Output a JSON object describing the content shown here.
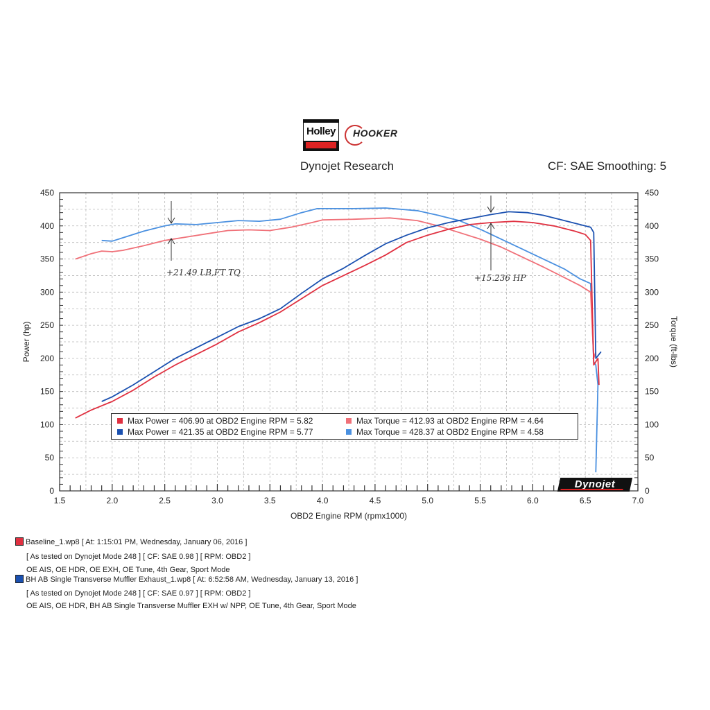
{
  "header": {
    "holley_logo_text": "Holley",
    "hooker_logo_text": "HOOKER",
    "title": "Dynojet Research",
    "cf_text": "CF: SAE Smoothing: 5"
  },
  "colors": {
    "baseline_power": "#e03040",
    "baseline_torque": "#f07078",
    "bh_power": "#1a50b0",
    "bh_torque": "#4a90e0"
  },
  "chart_data": {
    "type": "line",
    "xlabel": "OBD2 Engine RPM (rpmx1000)",
    "ylabel_left": "Power (hp)",
    "ylabel_right": "Torque (ft-lbs)",
    "xlim": [
      1.5,
      7.0
    ],
    "ylim": [
      0,
      450
    ],
    "x_ticks": [
      "1.5",
      "2.0",
      "2.5",
      "3.0",
      "3.5",
      "4.0",
      "4.5",
      "5.0",
      "5.5",
      "6.0",
      "6.5",
      "7.0"
    ],
    "y_ticks": [
      "0",
      "50",
      "100",
      "150",
      "200",
      "250",
      "300",
      "350",
      "400",
      "450"
    ],
    "grid": true,
    "series": [
      {
        "key": "bh_torque",
        "color": "#4a90e0",
        "points": [
          [
            1.9,
            378
          ],
          [
            2.0,
            377
          ],
          [
            2.1,
            382
          ],
          [
            2.3,
            392
          ],
          [
            2.5,
            400
          ],
          [
            2.6,
            403
          ],
          [
            2.8,
            402
          ],
          [
            3.0,
            405
          ],
          [
            3.2,
            408
          ],
          [
            3.4,
            407
          ],
          [
            3.6,
            410
          ],
          [
            3.8,
            420
          ],
          [
            3.95,
            426
          ],
          [
            4.1,
            426
          ],
          [
            4.3,
            426
          ],
          [
            4.6,
            427
          ],
          [
            4.9,
            423
          ],
          [
            5.1,
            416
          ],
          [
            5.3,
            408
          ],
          [
            5.5,
            395
          ],
          [
            5.7,
            380
          ],
          [
            5.9,
            365
          ],
          [
            6.1,
            350
          ],
          [
            6.3,
            335
          ],
          [
            6.45,
            320
          ],
          [
            6.55,
            313
          ],
          [
            6.58,
            195
          ],
          [
            6.6,
            190
          ],
          [
            6.62,
            160
          ],
          [
            6.6,
            28
          ]
        ]
      },
      {
        "key": "baseline_torque",
        "color": "#f07078",
        "points": [
          [
            1.65,
            350
          ],
          [
            1.8,
            358
          ],
          [
            1.9,
            362
          ],
          [
            2.0,
            361
          ],
          [
            2.1,
            363
          ],
          [
            2.3,
            370
          ],
          [
            2.5,
            378
          ],
          [
            2.7,
            383
          ],
          [
            2.9,
            388
          ],
          [
            3.1,
            393
          ],
          [
            3.3,
            394
          ],
          [
            3.5,
            393
          ],
          [
            3.7,
            398
          ],
          [
            3.9,
            405
          ],
          [
            4.0,
            409
          ],
          [
            4.3,
            410
          ],
          [
            4.64,
            412
          ],
          [
            4.9,
            408
          ],
          [
            5.1,
            400
          ],
          [
            5.3,
            390
          ],
          [
            5.5,
            380
          ],
          [
            5.7,
            368
          ],
          [
            5.9,
            353
          ],
          [
            6.1,
            338
          ],
          [
            6.3,
            322
          ],
          [
            6.45,
            310
          ],
          [
            6.55,
            300
          ],
          [
            6.58,
            200
          ],
          [
            6.6,
            210
          ]
        ]
      },
      {
        "key": "baseline_power",
        "color": "#e03040",
        "points": [
          [
            1.65,
            110
          ],
          [
            1.8,
            122
          ],
          [
            2.0,
            135
          ],
          [
            2.2,
            152
          ],
          [
            2.4,
            172
          ],
          [
            2.6,
            190
          ],
          [
            2.8,
            206
          ],
          [
            3.0,
            222
          ],
          [
            3.2,
            240
          ],
          [
            3.4,
            254
          ],
          [
            3.6,
            270
          ],
          [
            3.8,
            290
          ],
          [
            4.0,
            310
          ],
          [
            4.2,
            325
          ],
          [
            4.4,
            340
          ],
          [
            4.6,
            356
          ],
          [
            4.8,
            375
          ],
          [
            5.0,
            386
          ],
          [
            5.2,
            395
          ],
          [
            5.4,
            402
          ],
          [
            5.6,
            405
          ],
          [
            5.82,
            406.9
          ],
          [
            6.0,
            405
          ],
          [
            6.2,
            400
          ],
          [
            6.4,
            392
          ],
          [
            6.5,
            387
          ],
          [
            6.55,
            378
          ],
          [
            6.58,
            190
          ],
          [
            6.62,
            200
          ],
          [
            6.63,
            160
          ]
        ]
      },
      {
        "key": "bh_power",
        "color": "#1a50b0",
        "points": [
          [
            1.9,
            135
          ],
          [
            2.0,
            142
          ],
          [
            2.2,
            160
          ],
          [
            2.4,
            180
          ],
          [
            2.6,
            200
          ],
          [
            2.8,
            216
          ],
          [
            3.0,
            232
          ],
          [
            3.2,
            248
          ],
          [
            3.4,
            260
          ],
          [
            3.6,
            275
          ],
          [
            3.8,
            298
          ],
          [
            4.0,
            320
          ],
          [
            4.2,
            336
          ],
          [
            4.4,
            355
          ],
          [
            4.6,
            373
          ],
          [
            4.8,
            386
          ],
          [
            5.0,
            397
          ],
          [
            5.2,
            405
          ],
          [
            5.4,
            411
          ],
          [
            5.6,
            417
          ],
          [
            5.77,
            421.35
          ],
          [
            5.95,
            420
          ],
          [
            6.1,
            416
          ],
          [
            6.3,
            408
          ],
          [
            6.45,
            402
          ],
          [
            6.55,
            398
          ],
          [
            6.58,
            390
          ],
          [
            6.6,
            200
          ],
          [
            6.65,
            210
          ]
        ]
      }
    ],
    "legend": [
      {
        "key": "baseline_power",
        "text": "Max Power = 406.90 at OBD2 Engine RPM = 5.82"
      },
      {
        "key": "baseline_torque",
        "text": "Max Torque = 412.93 at OBD2 Engine RPM = 4.64"
      },
      {
        "key": "bh_power",
        "text": "Max Power = 421.35 at OBD2 Engine RPM = 5.77"
      },
      {
        "key": "bh_torque",
        "text": "Max Torque = 428.37 at OBD2 Engine RPM = 4.58"
      }
    ],
    "annotations": {
      "torque_gain": "+21.49 LB,FT TQ",
      "hp_gain": "+15.236 HP"
    }
  },
  "dynojet_logo_text": "Dynojet",
  "footer": {
    "run1_title": "Baseline_1.wp8 [ At: 1:15:01 PM, Wednesday, January 06, 2016 ]",
    "run1_line2": "[ As tested on Dynojet Mode 248 ]  [ CF: SAE 0.98 ]  [ RPM: OBD2 ]",
    "run1_line3": "OE AIS, OE HDR, OE EXH, OE Tune, 4th Gear, Sport Mode",
    "run2_title": "BH AB Single Transverse Muffler Exhaust_1.wp8 [ At: 6:52:58 AM, Wednesday, January 13, 2016 ]",
    "run2_line2": "[ As tested on Dynojet Mode 248 ]  [ CF: SAE 0.97 ]  [ RPM: OBD2 ]",
    "run2_line3": "OE AIS, OE HDR, BH AB Single Transverse Muffler EXH w/ NPP, OE Tune, 4th Gear, Sport Mode"
  }
}
